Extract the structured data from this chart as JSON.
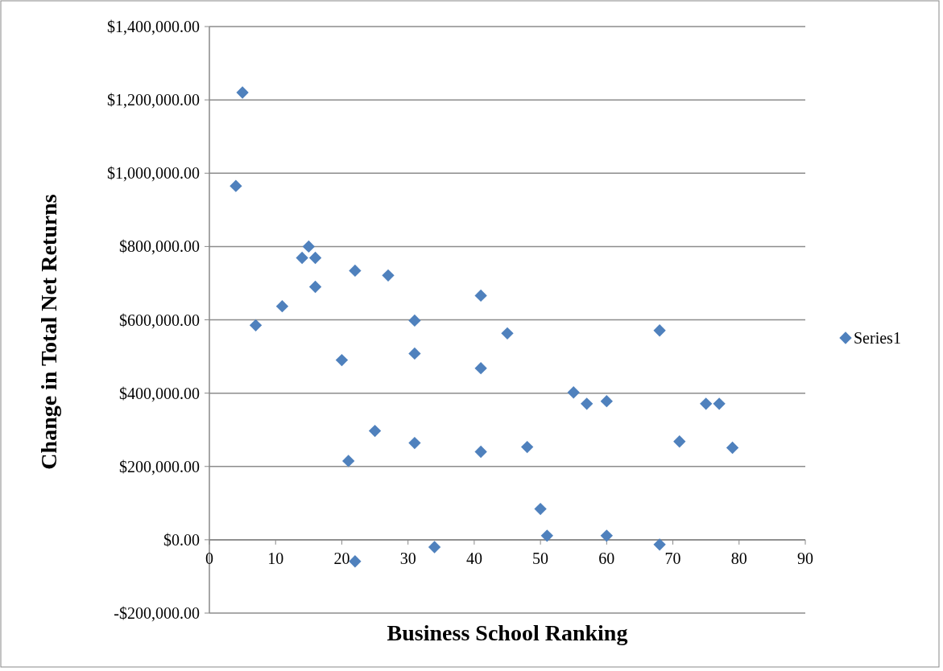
{
  "chart_data": {
    "type": "scatter",
    "xlabel": "Business School Ranking",
    "ylabel": "Change in Total Net Returns",
    "xlim": [
      0,
      90
    ],
    "xticks": [
      0,
      10,
      20,
      30,
      40,
      50,
      60,
      70,
      80,
      90
    ],
    "ylim": [
      -200000,
      1400000
    ],
    "yticks": [
      {
        "value": -200000,
        "label": "-$200,000.00"
      },
      {
        "value": 0,
        "label": "$0.00"
      },
      {
        "value": 200000,
        "label": "$200,000.00"
      },
      {
        "value": 400000,
        "label": "$400,000.00"
      },
      {
        "value": 600000,
        "label": "$600,000.00"
      },
      {
        "value": 800000,
        "label": "$800,000.00"
      },
      {
        "value": 1000000,
        "label": "$1,000,000.00"
      },
      {
        "value": 1200000,
        "label": "$1,200,000.00"
      },
      {
        "value": 1400000,
        "label": "$1,400,000.00"
      }
    ],
    "grid": "y",
    "legend": "right",
    "marker": "diamond",
    "series": [
      {
        "name": "Series1",
        "color": "#4f81bd",
        "x": [
          4,
          5,
          7,
          11,
          14,
          15,
          16,
          16,
          20,
          21,
          22,
          22,
          25,
          27,
          31,
          31,
          31,
          34,
          41,
          41,
          41,
          45,
          48,
          50,
          51,
          55,
          57,
          60,
          60,
          68,
          68,
          71,
          75,
          77,
          79
        ],
        "values": [
          965000,
          1220000,
          585000,
          637000,
          769000,
          800000,
          769000,
          690000,
          490000,
          215000,
          734000,
          -59000,
          297000,
          721000,
          598000,
          508000,
          264000,
          -20000,
          666000,
          468000,
          240000,
          563000,
          253000,
          84000,
          11000,
          402000,
          371000,
          378000,
          11000,
          571000,
          -13000,
          268000,
          371000,
          371000,
          251000
        ]
      }
    ]
  }
}
